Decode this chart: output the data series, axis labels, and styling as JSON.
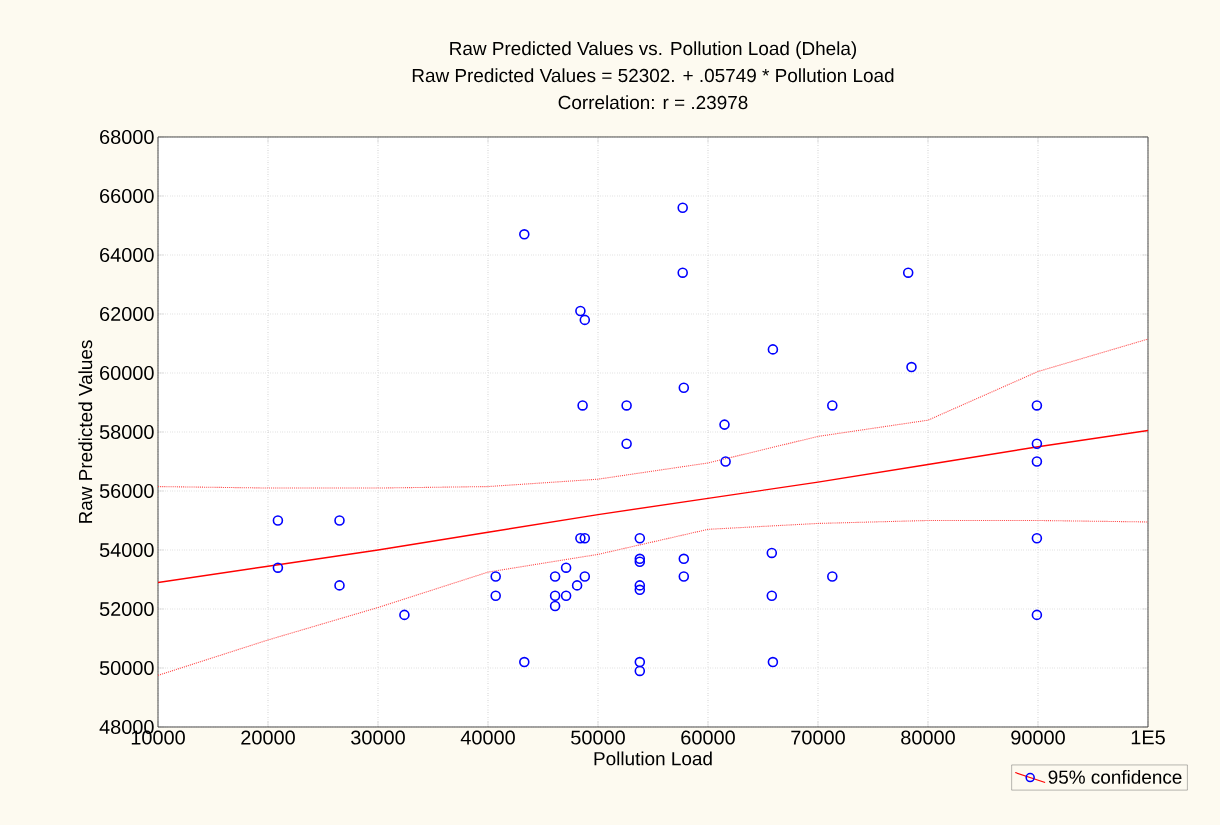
{
  "chart_data": {
    "type": "scatter",
    "title": "Raw Predicted Values  vs. Pollution Load (Dhela)",
    "subtitle": "Raw Predicted Values  = 52302. + .05749 * Pollution Load",
    "annotations": [
      "Correlation: r = .23978"
    ],
    "xlabel": "Pollution Load",
    "ylabel": "Raw Predicted Values",
    "xlim": [
      10000,
      100000
    ],
    "ylim": [
      48000,
      68000
    ],
    "xticks": [
      10000,
      20000,
      30000,
      40000,
      50000,
      60000,
      70000,
      80000,
      90000,
      {
        "value": 100000,
        "label": "1E5"
      }
    ],
    "yticks": [
      48000,
      50000,
      52000,
      54000,
      56000,
      58000,
      60000,
      62000,
      64000,
      66000,
      68000
    ],
    "grid": true,
    "legend": "bottom right",
    "series": [
      {
        "marker": "circle",
        "color": "#0000ff",
        "x": [
          20900,
          20900,
          26500,
          26500,
          32400,
          40700,
          40700,
          43300,
          43300,
          57700,
          57700,
          48400,
          48800,
          48600,
          52600,
          52600,
          57800,
          65900,
          61500,
          61600,
          71300,
          48400,
          48800,
          53800,
          53800,
          53800,
          57800,
          65800,
          46100,
          47100,
          48800,
          48100,
          46100,
          47100,
          46100,
          53800,
          53800,
          57800,
          65800,
          71300,
          53800,
          53800,
          65900,
          78200,
          78500,
          89900,
          89900,
          89900,
          89900,
          89900
        ],
        "values": [
          55000,
          53400,
          55000,
          52800,
          51800,
          53100,
          52450,
          64700,
          50200,
          65600,
          63400,
          62100,
          61800,
          58900,
          58900,
          57600,
          59500,
          60800,
          58250,
          57000,
          58900,
          54400,
          54400,
          54400,
          53700,
          53600,
          53700,
          53900,
          53100,
          53400,
          53100,
          52800,
          52450,
          52450,
          52100,
          52800,
          52650,
          53100,
          52450,
          53100,
          50200,
          49900,
          50200,
          63400,
          60200,
          58900,
          57600,
          57000,
          54400,
          51800
        ]
      },
      {
        "type": "line",
        "name": "95% confidence",
        "marker": "none",
        "color": "#ff0000",
        "line_style": "solid",
        "x": [
          10000,
          20000,
          30000,
          40000,
          50000,
          60000,
          70000,
          80000,
          90000,
          100000
        ],
        "values": [
          52900,
          53450,
          54000,
          54600,
          55200,
          55750,
          56300,
          56900,
          57500,
          58050
        ]
      },
      {
        "type": "line",
        "marker": "none",
        "color": "#ff4c4c",
        "line_style": "dotted",
        "x": [
          10000,
          20000,
          30000,
          40000,
          50000,
          60000,
          70000,
          80000,
          90000,
          100000
        ],
        "values": [
          49750,
          50950,
          52050,
          53250,
          53850,
          54700,
          54900,
          55000,
          55000,
          54950
        ]
      },
      {
        "type": "line",
        "marker": "none",
        "color": "#ff4c4c",
        "line_style": "dotted",
        "x": [
          10000,
          20000,
          30000,
          40000,
          50000,
          60000,
          70000,
          80000,
          90000,
          100000
        ],
        "values": [
          56150,
          56100,
          56100,
          56150,
          56400,
          56950,
          57850,
          58400,
          60050,
          61150
        ]
      }
    ]
  }
}
